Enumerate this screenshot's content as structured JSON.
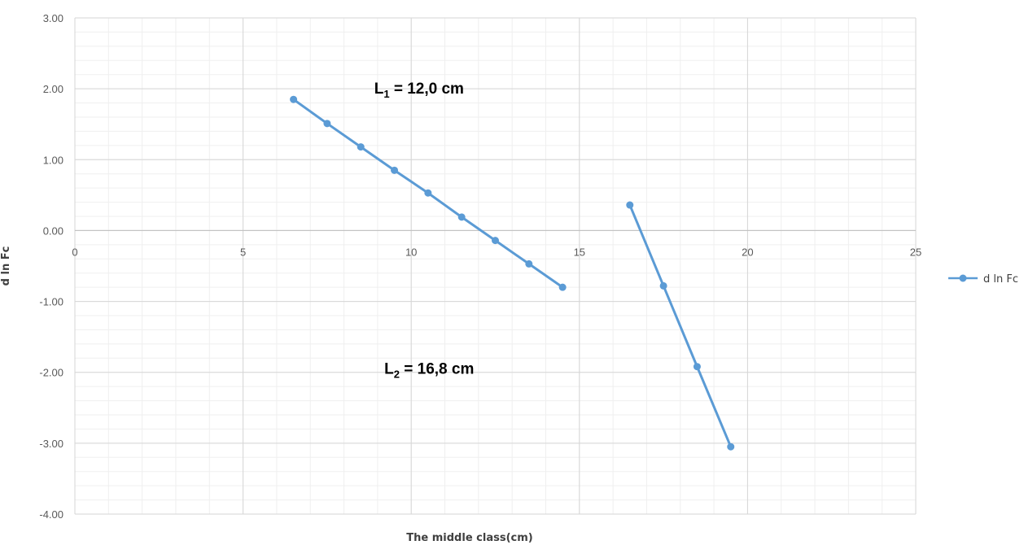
{
  "chart_data": {
    "type": "scatter",
    "title": "",
    "xlabel": "The middle class(cm)",
    "ylabel": "d ln Fc",
    "xlim": [
      0,
      25
    ],
    "ylim": [
      -4,
      3
    ],
    "x_ticks": [
      0,
      5,
      10,
      15,
      20,
      25
    ],
    "y_ticks": [
      3,
      2,
      1,
      0,
      -1,
      -2,
      -3,
      -4
    ],
    "x_tick_labels": [
      "0",
      "5",
      "10",
      "15",
      "20",
      "25"
    ],
    "y_tick_labels": [
      "3.00",
      "2.00",
      "1.00",
      "0.00",
      "-1.00",
      "-2.00",
      "-3.00",
      "-4.00"
    ],
    "x_minor_step": 1,
    "y_minor_step": 0.2,
    "grid": true,
    "legend_position": "right",
    "color": "#5b9bd5",
    "series": [
      {
        "name": "d ln Fc",
        "segments": [
          {
            "x": [
              6.5,
              7.5,
              8.5,
              9.5,
              10.5,
              11.5,
              12.5,
              13.5,
              14.5
            ],
            "y": [
              1.85,
              1.51,
              1.18,
              0.85,
              0.53,
              0.19,
              -0.14,
              -0.47,
              -0.8
            ]
          },
          {
            "x": [
              16.5,
              17.5,
              18.5,
              19.5
            ],
            "y": [
              0.36,
              -0.78,
              -1.92,
              -3.05
            ]
          }
        ]
      }
    ],
    "annotations": [
      {
        "main": "L",
        "sub": "1",
        "rest": " =  12,0 cm",
        "x": 8.9,
        "y": 1.93
      },
      {
        "main": "L",
        "sub": "2",
        "rest": " =  16,8 cm",
        "x": 9.2,
        "y": -2.02
      }
    ]
  }
}
